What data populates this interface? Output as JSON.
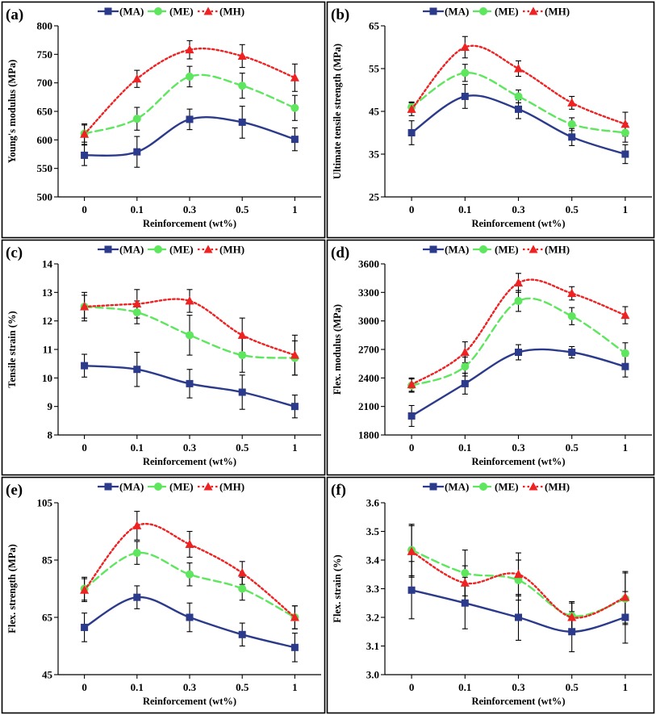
{
  "figure": {
    "x_title": "Reinforcement (wt%)",
    "categories": [
      "0",
      "0.1",
      "0.3",
      "0.5",
      "1"
    ],
    "series_styles": [
      {
        "name": "(MA)",
        "color": "#2b3a8a",
        "dash": "",
        "marker": "square"
      },
      {
        "name": "(ME)",
        "color": "#5ee65e",
        "dash": "9 5",
        "marker": "circle"
      },
      {
        "name": "(MH)",
        "color": "#ee2222",
        "dash": "2.5 3",
        "marker": "triangle"
      }
    ]
  },
  "chart_data": [
    {
      "panel": "(a)",
      "type": "line",
      "ylabel": "Young's modulus (MPa)",
      "xlabel": "Reinforcement (wt%)",
      "categories": [
        "0",
        "0.1",
        "0.3",
        "0.5",
        "1"
      ],
      "ylim": [
        500,
        800
      ],
      "yticks": [
        "500",
        "550",
        "600",
        "650",
        "700",
        "750",
        "800"
      ],
      "series": [
        {
          "name": "(MA)",
          "values": [
            573,
            579,
            636,
            631,
            601
          ],
          "errors": [
            18,
            27,
            18,
            28,
            20
          ]
        },
        {
          "name": "(ME)",
          "values": [
            611,
            637,
            711,
            695,
            656
          ],
          "errors": [
            15,
            20,
            18,
            22,
            22
          ]
        },
        {
          "name": "(MH)",
          "values": [
            610,
            707,
            758,
            747,
            709
          ],
          "errors": [
            18,
            15,
            16,
            20,
            24
          ]
        }
      ]
    },
    {
      "panel": "(b)",
      "type": "line",
      "ylabel": "Ultimate tensile strength (MPa)",
      "xlabel": "Reinforcement (wt%)",
      "categories": [
        "0",
        "0.1",
        "0.3",
        "0.5",
        "1"
      ],
      "ylim": [
        25,
        65
      ],
      "yticks": [
        "25",
        "35",
        "45",
        "55",
        "65"
      ],
      "series": [
        {
          "name": "(MA)",
          "values": [
            40,
            48.5,
            45.5,
            39,
            35
          ],
          "errors": [
            2.8,
            2.8,
            2.2,
            2,
            2.2
          ]
        },
        {
          "name": "(ME)",
          "values": [
            46,
            54,
            48.5,
            42,
            40
          ],
          "errors": [
            1.2,
            2,
            1.5,
            1.5,
            2.2
          ]
        },
        {
          "name": "(MH)",
          "values": [
            45.5,
            60,
            55,
            47,
            42
          ],
          "errors": [
            1.5,
            2.5,
            1.8,
            1.5,
            2.8
          ]
        }
      ]
    },
    {
      "panel": "(c)",
      "type": "line",
      "ylabel": "Tensile strain (%)",
      "xlabel": "Reinforcement (wt%)",
      "categories": [
        "0",
        "0.1",
        "0.3",
        "0.5",
        "1"
      ],
      "ylim": [
        8,
        14
      ],
      "yticks": [
        "8",
        "9",
        "10",
        "11",
        "12",
        "13",
        "14"
      ],
      "series": [
        {
          "name": "(MA)",
          "values": [
            10.43,
            10.3,
            9.8,
            9.5,
            9
          ],
          "errors": [
            0.4,
            0.6,
            0.5,
            0.6,
            0.4
          ]
        },
        {
          "name": "(ME)",
          "values": [
            12.5,
            12.3,
            11.5,
            10.8,
            10.7
          ],
          "errors": [
            0.4,
            0.4,
            0.7,
            0.6,
            0.6
          ]
        },
        {
          "name": "(MH)",
          "values": [
            12.5,
            12.6,
            12.7,
            11.5,
            10.8
          ],
          "errors": [
            0.5,
            0.5,
            0.4,
            0.6,
            0.7
          ]
        }
      ]
    },
    {
      "panel": "(d)",
      "type": "line",
      "ylabel": "Flex. modulus (MPa)",
      "xlabel": "Reinforcement (wt%)",
      "categories": [
        "0",
        "0.1",
        "0.3",
        "0.5",
        "1"
      ],
      "ylim": [
        1800,
        3600
      ],
      "yticks": [
        "1800",
        "2100",
        "2400",
        "2700",
        "3000",
        "3300",
        "3600"
      ],
      "series": [
        {
          "name": "(MA)",
          "values": [
            2000,
            2340,
            2670,
            2670,
            2520
          ],
          "errors": [
            110,
            110,
            80,
            60,
            110
          ]
        },
        {
          "name": "(ME)",
          "values": [
            2320,
            2520,
            3210,
            3050,
            2660
          ],
          "errors": [
            70,
            100,
            110,
            90,
            110
          ]
        },
        {
          "name": "(MH)",
          "values": [
            2330,
            2670,
            3400,
            3290,
            3060
          ],
          "errors": [
            70,
            110,
            100,
            70,
            90
          ]
        }
      ]
    },
    {
      "panel": "(e)",
      "type": "line",
      "ylabel": "Flex. strength (MPa)",
      "xlabel": "Reinforcement (wt%)",
      "categories": [
        "0",
        "0.1",
        "0.3",
        "0.5",
        "1"
      ],
      "ylim": [
        45,
        105
      ],
      "yticks": [
        "45",
        "65",
        "85",
        "105"
      ],
      "series": [
        {
          "name": "(MA)",
          "values": [
            61.5,
            72,
            65,
            59,
            54.5
          ],
          "errors": [
            5,
            4,
            5,
            4,
            5
          ]
        },
        {
          "name": "(ME)",
          "values": [
            75,
            87.5,
            80,
            75,
            65
          ],
          "errors": [
            4,
            4,
            4,
            4,
            4
          ]
        },
        {
          "name": "(MH)",
          "values": [
            74.5,
            97,
            90.5,
            80.5,
            65
          ],
          "errors": [
            4,
            5,
            4.5,
            4,
            4
          ]
        }
      ]
    },
    {
      "panel": "(f)",
      "type": "line",
      "ylabel": "Flex. strain (%)",
      "xlabel": "Reinforcement (wt%)",
      "categories": [
        "0",
        "0.1",
        "0.3",
        "0.5",
        "1"
      ],
      "ylim": [
        3.0,
        3.6
      ],
      "yticks": [
        "3.0",
        "3.1",
        "3.2",
        "3.3",
        "3.4",
        "3.5",
        "3.6"
      ],
      "series": [
        {
          "name": "(MA)",
          "values": [
            3.295,
            3.25,
            3.2,
            3.15,
            3.2
          ],
          "errors": [
            0.1,
            0.09,
            0.08,
            0.07,
            0.09
          ]
        },
        {
          "name": "(ME)",
          "values": [
            3.435,
            3.355,
            3.33,
            3.205,
            3.265
          ],
          "errors": [
            0.09,
            0.08,
            0.07,
            0.05,
            0.09
          ]
        },
        {
          "name": "(MH)",
          "values": [
            3.43,
            3.32,
            3.35,
            3.2,
            3.27
          ],
          "errors": [
            0.09,
            0.06,
            0.075,
            0.05,
            0.09
          ]
        }
      ]
    }
  ]
}
